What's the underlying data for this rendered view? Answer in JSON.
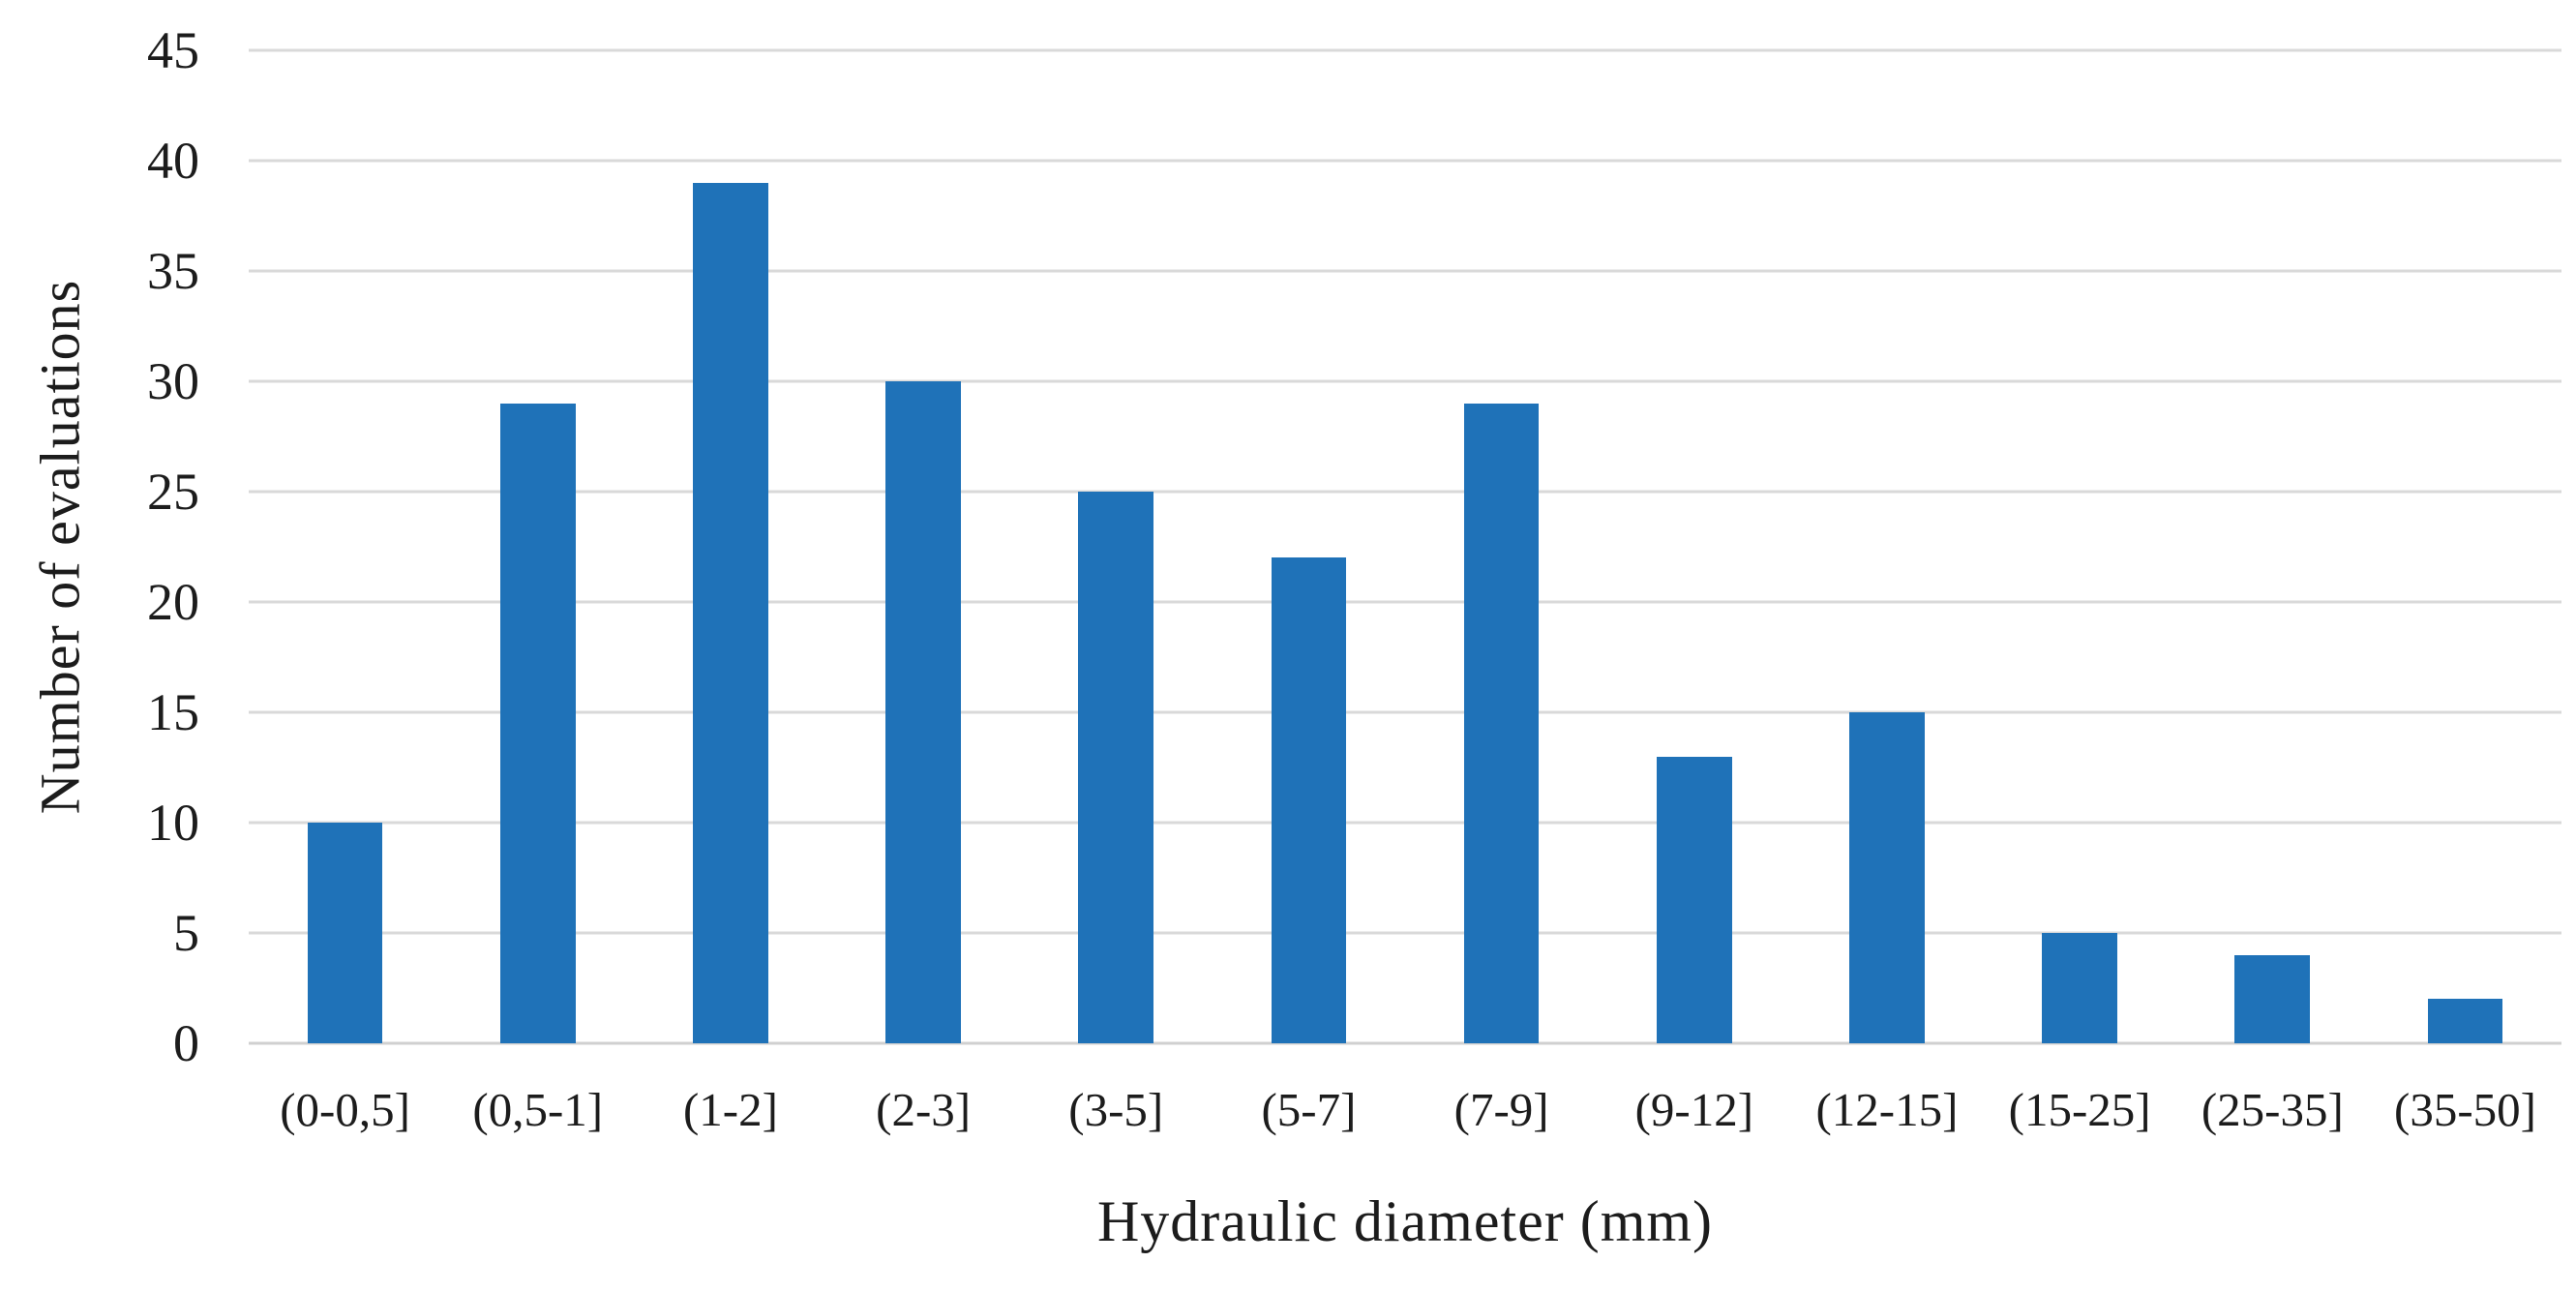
{
  "chart_data": {
    "type": "bar",
    "title": "",
    "categories": [
      "(0-0,5]",
      "(0,5-1]",
      "(1-2]",
      "(2-3]",
      "(3-5]",
      "(5-7]",
      "(7-9]",
      "(9-12]",
      "(12-15]",
      "(15-25]",
      "(25-35]",
      "(35-50]"
    ],
    "values": [
      10,
      29,
      39,
      30,
      25,
      22,
      29,
      13,
      15,
      5,
      4,
      2
    ],
    "xlabel": "Hydraulic diameter (mm)",
    "ylabel": "Number of evaluations",
    "ylim": [
      0,
      45
    ],
    "yticks": [
      0,
      5,
      10,
      15,
      20,
      25,
      30,
      35,
      40,
      45
    ],
    "grid": "horizontal",
    "legend": "none",
    "colors": {
      "bar": "#1f72b8",
      "gridline": "#d9d9d9",
      "baseline": "#d0d0d0",
      "text": "#1c1c1c",
      "background": "#ffffff"
    }
  }
}
